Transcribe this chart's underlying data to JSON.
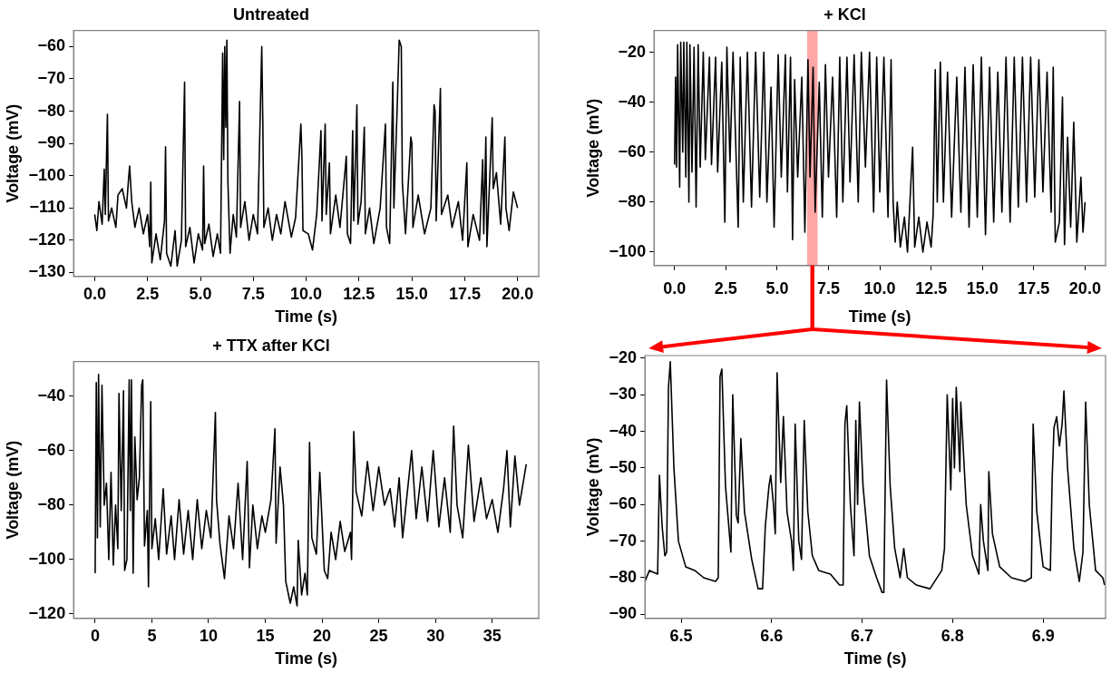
{
  "chart_data": [
    {
      "type": "line",
      "title": "Untreated",
      "xlabel": "Time (s)",
      "ylabel": "Voltage (mV)",
      "color": "#000000",
      "xlim": [
        -1,
        21
      ],
      "ylim": [
        -131.2,
        -55
      ],
      "xticks": [
        {
          "value": 0,
          "label": "0.0"
        },
        2.5,
        {
          "value": 5,
          "label": "5.0"
        },
        7.5,
        {
          "value": 10,
          "label": "10.0"
        },
        12.5,
        {
          "value": 15,
          "label": "15.0"
        },
        17.5,
        {
          "value": 20,
          "label": "20.0"
        }
      ],
      "yticks": [
        {
          "value": -130,
          "label": "−130"
        },
        {
          "value": -120,
          "label": "−120"
        },
        {
          "value": -110,
          "label": "−110"
        },
        {
          "value": -100,
          "label": "−100"
        },
        {
          "value": -90,
          "label": "−90"
        },
        {
          "value": -80,
          "label": "−80"
        },
        {
          "value": -70,
          "label": "−70"
        },
        {
          "value": -60,
          "label": "−60"
        }
      ],
      "x": [
        0,
        0.1,
        0.2,
        0.35,
        0.45,
        0.5,
        0.6,
        0.65,
        0.8,
        1.0,
        1.1,
        1.3,
        1.5,
        1.6,
        1.65,
        1.75,
        1.9,
        2.1,
        2.3,
        2.5,
        2.6,
        2.65,
        2.7,
        2.9,
        3.1,
        3.3,
        3.35,
        3.4,
        3.6,
        3.8,
        3.9,
        4.1,
        4.25,
        4.3,
        4.5,
        4.7,
        4.9,
        5.1,
        5.15,
        5.2,
        5.4,
        5.6,
        5.8,
        5.95,
        6.05,
        6.1,
        6.15,
        6.2,
        6.25,
        6.3,
        6.4,
        6.55,
        6.7,
        6.85,
        6.9,
        7.1,
        7.3,
        7.5,
        7.7,
        7.9,
        7.95,
        8.0,
        8.2,
        8.4,
        8.6,
        8.8,
        9.0,
        9.3,
        9.5,
        9.75,
        9.8,
        9.85,
        10.1,
        10.3,
        10.5,
        10.7,
        10.75,
        10.9,
        10.95,
        11.1,
        11.15,
        11.4,
        11.6,
        11.9,
        11.95,
        12.1,
        12.2,
        12.25,
        12.35,
        12.4,
        12.45,
        12.6,
        12.75,
        12.8,
        13.0,
        13.2,
        13.5,
        13.75,
        13.8,
        13.95,
        14.1,
        14.15,
        14.3,
        14.4,
        14.5,
        14.55,
        14.7,
        14.95,
        15.0,
        15.05,
        15.3,
        15.6,
        15.9,
        16.05,
        16.1,
        16.15,
        16.35,
        16.4,
        16.7,
        16.9,
        17.2,
        17.4,
        17.6,
        17.65,
        17.9,
        18.2,
        18.35,
        18.4,
        18.5,
        18.55,
        18.8,
        18.85,
        19.0,
        19.2,
        19.4,
        19.45,
        19.6,
        19.8,
        20.0
      ],
      "values": [
        -112,
        -117,
        -108,
        -115,
        -98,
        -112,
        -81,
        -114,
        -110,
        -116,
        -106,
        -104,
        -110,
        -101,
        -97,
        -108,
        -116,
        -110,
        -118,
        -112,
        -122,
        -102,
        -127,
        -118,
        -126,
        -114,
        -91,
        -124,
        -128,
        -117,
        -128,
        -120,
        -71,
        -122,
        -116,
        -127,
        -118,
        -123,
        -97,
        -121,
        -115,
        -125,
        -118,
        -124,
        -62,
        -95,
        -60,
        -85,
        -58,
        -102,
        -124,
        -112,
        -119,
        -77,
        -116,
        -108,
        -120,
        -112,
        -118,
        -60,
        -83,
        -116,
        -110,
        -120,
        -112,
        -118,
        -108,
        -119,
        -113,
        -84,
        -94,
        -117,
        -118,
        -123,
        -112,
        -86,
        -114,
        -84,
        -112,
        -96,
        -118,
        -106,
        -116,
        -94,
        -118,
        -121,
        -86,
        -114,
        -91,
        -78,
        -115,
        -108,
        -85,
        -118,
        -110,
        -121,
        -110,
        -84,
        -116,
        -121,
        -71,
        -110,
        -80,
        -58,
        -60,
        -102,
        -118,
        -88,
        -90,
        -116,
        -106,
        -118,
        -110,
        -78,
        -80,
        -114,
        -73,
        -112,
        -106,
        -116,
        -108,
        -120,
        -96,
        -122,
        -112,
        -120,
        -95,
        -118,
        -88,
        -122,
        -82,
        -104,
        -99,
        -115,
        -88,
        -110,
        -117,
        -105,
        -110
      ]
    },
    {
      "type": "line",
      "title": "+ KCl",
      "xlabel": "Time (s)",
      "ylabel": "Voltage (mV)",
      "color": "#000000",
      "xlim": [
        -1,
        21
      ],
      "ylim": [
        -105.4,
        -11.3
      ],
      "bands": [
        {
          "axis": "x",
          "from": 6.46,
          "to": 6.969,
          "color": "#ff0000"
        }
      ],
      "xticks": [
        {
          "value": 0,
          "label": "0.0"
        },
        2.5,
        {
          "value": 5,
          "label": "5.0"
        },
        7.5,
        {
          "value": 10,
          "label": "10.0"
        },
        12.5,
        {
          "value": 15,
          "label": "15.0"
        },
        17.5,
        {
          "value": 20,
          "label": "20.0"
        }
      ],
      "yticks": [
        {
          "value": -100,
          "label": "−100"
        },
        {
          "value": -80,
          "label": "−80"
        },
        {
          "value": -60,
          "label": "−60"
        },
        {
          "value": -40,
          "label": "−40"
        },
        {
          "value": -20,
          "label": "−20"
        }
      ],
      "x": [
        0,
        0.05,
        0.1,
        0.15,
        0.25,
        0.3,
        0.4,
        0.45,
        0.55,
        0.6,
        0.7,
        0.75,
        0.85,
        0.95,
        1.05,
        1.15,
        1.25,
        1.4,
        1.5,
        1.7,
        1.8,
        2.0,
        2.1,
        2.3,
        2.45,
        2.55,
        2.7,
        2.85,
        3.1,
        3.2,
        3.35,
        3.55,
        3.75,
        3.95,
        4.15,
        4.35,
        4.5,
        4.7,
        4.85,
        5.05,
        5.2,
        5.4,
        5.5,
        5.65,
        5.75,
        5.85,
        6.0,
        6.2,
        6.35,
        6.5,
        6.6,
        6.75,
        6.85,
        7.05,
        7.2,
        7.35,
        7.5,
        7.7,
        7.9,
        8.05,
        8.2,
        8.4,
        8.55,
        8.75,
        8.95,
        9.1,
        9.3,
        9.5,
        9.7,
        9.85,
        10.0,
        10.2,
        10.4,
        10.55,
        10.65,
        10.75,
        10.85,
        11.0,
        11.2,
        11.35,
        11.6,
        11.7,
        11.9,
        12.1,
        12.3,
        12.5,
        12.6,
        12.7,
        12.8,
        12.95,
        13.1,
        13.3,
        13.5,
        13.75,
        13.95,
        14.15,
        14.35,
        14.55,
        14.75,
        14.95,
        15.15,
        15.35,
        15.55,
        15.75,
        15.95,
        16.15,
        16.35,
        16.55,
        16.75,
        16.95,
        17.15,
        17.35,
        17.55,
        17.75,
        17.95,
        18.15,
        18.35,
        18.45,
        18.55,
        18.75,
        18.9,
        19.0,
        19.15,
        19.3,
        19.45,
        19.6,
        19.8,
        19.9,
        20.0
      ],
      "values": [
        -65,
        -30,
        -66,
        -17,
        -74,
        -16,
        -60,
        -16,
        -70,
        -16,
        -80,
        -17,
        -68,
        -18,
        -82,
        -17,
        -66,
        -20,
        -63,
        -22,
        -65,
        -22,
        -68,
        -24,
        -88,
        -18,
        -64,
        -20,
        -90,
        -22,
        -80,
        -20,
        -82,
        -20,
        -78,
        -20,
        -80,
        -34,
        -90,
        -21,
        -70,
        -21,
        -76,
        -22,
        -95,
        -31,
        -70,
        -30,
        -92,
        -23,
        -70,
        -26,
        -84,
        -32,
        -86,
        -25,
        -70,
        -30,
        -86,
        -22,
        -80,
        -22,
        -72,
        -21,
        -80,
        -20,
        -66,
        -20,
        -84,
        -22,
        -76,
        -22,
        -86,
        -23,
        -80,
        -96,
        -80,
        -98,
        -86,
        -100,
        -58,
        -98,
        -86,
        -100,
        -88,
        -98,
        -85,
        -27,
        -80,
        -24,
        -80,
        -28,
        -86,
        -30,
        -84,
        -26,
        -90,
        -25,
        -86,
        -22,
        -93,
        -26,
        -88,
        -28,
        -84,
        -22,
        -88,
        -22,
        -82,
        -22,
        -80,
        -22,
        -78,
        -23,
        -76,
        -28,
        -84,
        -26,
        -96,
        -88,
        -38,
        -97,
        -54,
        -90,
        -48,
        -96,
        -70,
        -92,
        -80
      ]
    },
    {
      "type": "line",
      "title": "+ TTX after KCl",
      "xlabel": "Time (s)",
      "ylabel": "Voltage (mV)",
      "color": "#000000",
      "xlim": [
        -1.9,
        39.1
      ],
      "ylim": [
        -121.6,
        -27.3
      ],
      "xticks": [
        0,
        5,
        10,
        15,
        20,
        25,
        30,
        35
      ],
      "yticks": [
        {
          "value": -120,
          "label": "−120"
        },
        {
          "value": -100,
          "label": "−100"
        },
        {
          "value": -80,
          "label": "−80"
        },
        {
          "value": -60,
          "label": "−60"
        },
        {
          "value": -40,
          "label": "−40"
        }
      ],
      "x": [
        0,
        0.1,
        0.2,
        0.3,
        0.45,
        0.6,
        0.8,
        1.0,
        1.2,
        1.4,
        1.6,
        1.8,
        2.0,
        2.1,
        2.3,
        2.5,
        2.6,
        2.8,
        3.0,
        3.1,
        3.2,
        3.35,
        3.5,
        3.7,
        3.9,
        4.1,
        4.2,
        4.35,
        4.6,
        4.7,
        4.9,
        5.0,
        5.3,
        5.6,
        6.0,
        6.3,
        6.7,
        7.0,
        7.4,
        7.8,
        8.2,
        8.6,
        9.0,
        9.4,
        9.8,
        10.2,
        10.6,
        10.7,
        11.0,
        11.4,
        11.8,
        12.2,
        12.6,
        13.0,
        13.4,
        13.6,
        13.9,
        14.3,
        14.7,
        15.0,
        15.5,
        15.85,
        15.95,
        16.3,
        16.6,
        16.8,
        17.2,
        17.5,
        17.8,
        17.9,
        18.2,
        18.5,
        18.7,
        18.9,
        19.1,
        19.5,
        19.8,
        20.2,
        20.5,
        20.8,
        21.2,
        21.6,
        22.0,
        22.5,
        22.6,
        22.8,
        23.0,
        23.5,
        24.0,
        24.5,
        25.0,
        25.5,
        26.0,
        26.4,
        26.8,
        27.1,
        27.4,
        27.9,
        28.3,
        28.8,
        29.3,
        29.8,
        30.3,
        30.8,
        31.3,
        31.6,
        31.9,
        32.4,
        32.9,
        33.4,
        34.0,
        34.5,
        35.0,
        35.5,
        36.0,
        36.3,
        36.6,
        37.0,
        37.4,
        38.0
      ],
      "values": [
        -105,
        -35,
        -92,
        -32,
        -88,
        -36,
        -80,
        -72,
        -100,
        -68,
        -102,
        -80,
        -96,
        -39,
        -82,
        -38,
        -104,
        -100,
        -34,
        -82,
        -34,
        -105,
        -55,
        -78,
        -70,
        -36,
        -34,
        -95,
        -82,
        -110,
        -42,
        -96,
        -85,
        -100,
        -74,
        -98,
        -84,
        -100,
        -78,
        -98,
        -82,
        -100,
        -78,
        -96,
        -82,
        -92,
        -46,
        -78,
        -94,
        -107,
        -84,
        -96,
        -72,
        -100,
        -64,
        -103,
        -80,
        -96,
        -84,
        -90,
        -78,
        -52,
        -94,
        -66,
        -80,
        -108,
        -116,
        -110,
        -117,
        -93,
        -113,
        -105,
        -113,
        -57,
        -92,
        -98,
        -68,
        -104,
        -107,
        -90,
        -100,
        -86,
        -97,
        -90,
        -100,
        -53,
        -75,
        -84,
        -64,
        -82,
        -66,
        -80,
        -74,
        -88,
        -70,
        -92,
        -80,
        -60,
        -85,
        -66,
        -86,
        -60,
        -88,
        -70,
        -90,
        -51,
        -80,
        -92,
        -58,
        -86,
        -70,
        -85,
        -78,
        -90,
        -74,
        -60,
        -88,
        -62,
        -80,
        -65
      ]
    },
    {
      "type": "line",
      "xlabel": "Time (s)",
      "ylabel": "Voltage (mV)",
      "color": "#000000",
      "xlim": [
        6.46,
        6.969
      ],
      "ylim": [
        -91.1,
        -19.3
      ],
      "xticks": [
        6.5,
        6.6,
        6.7,
        6.8,
        6.9
      ],
      "yticks": [
        {
          "value": -90,
          "label": "−90"
        },
        {
          "value": -80,
          "label": "−80"
        },
        {
          "value": -70,
          "label": "−70"
        },
        {
          "value": -60,
          "label": "−60"
        },
        {
          "value": -50,
          "label": "−50"
        },
        {
          "value": -40,
          "label": "−40"
        },
        {
          "value": -30,
          "label": "−30"
        },
        {
          "value": -20,
          "label": "−20"
        }
      ],
      "x": [
        6.46,
        6.465,
        6.474,
        6.476,
        6.479,
        6.482,
        6.484,
        6.486,
        6.488,
        6.492,
        6.497,
        6.505,
        6.515,
        6.525,
        6.538,
        6.541,
        6.543,
        6.545,
        6.549,
        6.555,
        6.557,
        6.561,
        6.563,
        6.566,
        6.57,
        6.578,
        6.585,
        6.59,
        6.593,
        6.597,
        6.599,
        6.602,
        6.604,
        6.606,
        6.61,
        6.613,
        6.617,
        6.622,
        6.624,
        6.626,
        6.63,
        6.633,
        6.636,
        6.64,
        6.645,
        6.652,
        6.665,
        6.675,
        6.679,
        6.681,
        6.683,
        6.687,
        6.691,
        6.693,
        6.695,
        6.697,
        6.701,
        6.708,
        6.716,
        6.722,
        6.724,
        6.727,
        6.731,
        6.736,
        6.742,
        6.746,
        6.75,
        6.76,
        6.775,
        6.788,
        6.791,
        6.794,
        6.798,
        6.8,
        6.802,
        6.804,
        6.808,
        6.809,
        6.815,
        6.822,
        6.829,
        6.831,
        6.834,
        6.839,
        6.84,
        6.844,
        6.852,
        6.865,
        6.88,
        6.887,
        6.889,
        6.893,
        6.9,
        6.908,
        6.91,
        6.912,
        6.915,
        6.918,
        6.921,
        6.923,
        6.927,
        6.934,
        6.94,
        6.944,
        6.947,
        6.951,
        6.958,
        6.966,
        6.968
      ],
      "values": [
        -81,
        -78,
        -79,
        -52,
        -66,
        -74,
        -73,
        -28,
        -21,
        -50,
        -70,
        -77,
        -78,
        -80,
        -81,
        -80,
        -25,
        -23,
        -55,
        -73,
        -30,
        -63,
        -65,
        -42,
        -62,
        -75,
        -83,
        -83,
        -66,
        -55,
        -52,
        -60,
        -68,
        -24,
        -54,
        -36,
        -62,
        -70,
        -78,
        -38,
        -70,
        -75,
        -37,
        -62,
        -74,
        -78,
        -79,
        -82,
        -82,
        -38,
        -33,
        -60,
        -74,
        -37,
        -60,
        -32,
        -55,
        -74,
        -80,
        -84,
        -84,
        -26,
        -55,
        -72,
        -80,
        -72,
        -80,
        -82,
        -83,
        -78,
        -72,
        -30,
        -56,
        -31,
        -50,
        -28,
        -51,
        -32,
        -60,
        -74,
        -79,
        -60,
        -70,
        -78,
        -51,
        -68,
        -77,
        -80,
        -81,
        -80,
        -38,
        -62,
        -77,
        -78,
        -53,
        -39,
        -36,
        -44,
        -38,
        -29,
        -50,
        -72,
        -81,
        -73,
        -32,
        -60,
        -78,
        -80,
        -82
      ]
    }
  ]
}
